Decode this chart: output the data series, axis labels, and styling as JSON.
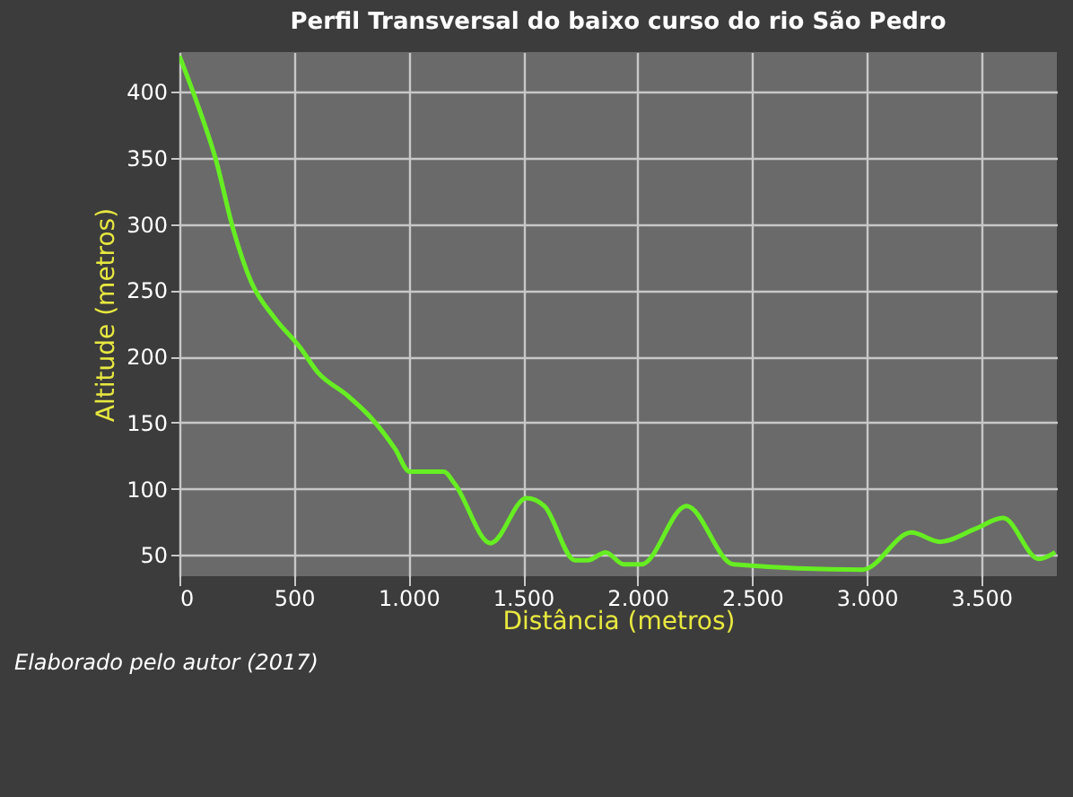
{
  "chart_data": {
    "type": "line",
    "title": "Perfil Transversal do baixo curso do rio São Pedro",
    "xlabel": "Distância (metros)",
    "ylabel": "Altitude (metros)",
    "annotations": [
      "Elaborado pelo autor (2017)"
    ],
    "x": [
      0,
      78,
      157,
      235,
      314,
      416,
      526,
      604,
      730,
      840,
      942,
      1005,
      1154,
      1201,
      1358,
      1515,
      1593,
      1727,
      1782,
      1860,
      1939,
      2017,
      2213,
      2418,
      2983,
      3195,
      3320,
      3477,
      3595,
      3752,
      3823
    ],
    "series": [
      {
        "color": "#66ee22",
        "values": [
          427,
          391,
          350,
          296,
          256,
          229,
          207,
          188,
          171,
          153,
          130,
          113,
          113,
          104,
          59,
          93,
          87,
          46,
          46,
          52,
          43,
          43,
          87,
          43,
          39,
          67,
          60,
          70,
          78,
          47,
          52
        ]
      }
    ],
    "xlim": [
      0,
      3830
    ],
    "ylim": [
      34,
      430
    ],
    "xticks": [
      0,
      500,
      {
        "value": 1000,
        "label": "1.000"
      },
      {
        "value": 1500,
        "label": "1.500"
      },
      {
        "value": 2000,
        "label": "2.000"
      },
      {
        "value": 2500,
        "label": "2.500"
      },
      {
        "value": 3000,
        "label": "3.000"
      },
      {
        "value": 3500,
        "label": "3.500"
      }
    ],
    "yticks": [
      50,
      100,
      150,
      200,
      250,
      300,
      350,
      400
    ],
    "grid": true
  }
}
